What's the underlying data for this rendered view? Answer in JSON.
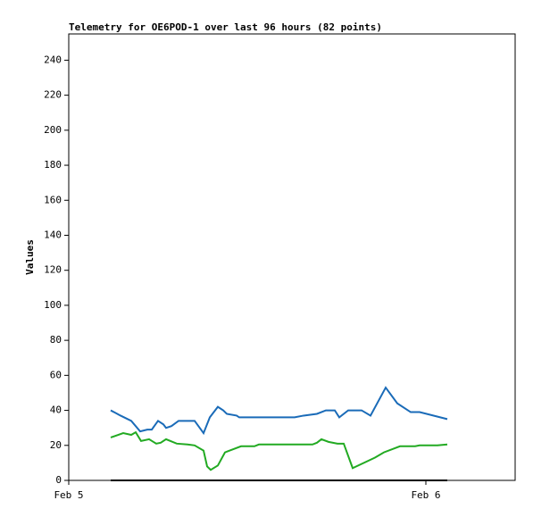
{
  "chart_data": {
    "type": "line",
    "title": "Telemetry for OE6POD-1 over last 96 hours (82 points)",
    "y_label": "Values",
    "xlim": [
      0,
      30
    ],
    "xticks": [
      {
        "value": 0,
        "label": "Feb 5"
      },
      {
        "value": 24,
        "label": "Feb 6"
      }
    ],
    "ylim": [
      0,
      255
    ],
    "yticks": [
      0,
      20,
      40,
      60,
      80,
      100,
      120,
      140,
      160,
      180,
      200,
      220,
      240
    ],
    "series": [
      {
        "color": "#1a6bb8",
        "x": [
          2.82,
          3.48,
          4.2,
          4.8,
          5.28,
          5.58,
          6.0,
          6.36,
          6.54,
          6.9,
          7.38,
          8.46,
          9.06,
          9.48,
          10.02,
          10.38,
          10.62,
          11.28,
          11.46,
          15.18,
          15.78,
          16.68,
          17.28,
          17.88,
          18.18,
          18.78,
          19.68,
          20.28,
          21.3,
          22.08,
          22.98,
          23.58,
          25.44
        ],
        "values": [
          40,
          37,
          34,
          28,
          29,
          29,
          34,
          32,
          30,
          31,
          34,
          34,
          27,
          36,
          42,
          40,
          38,
          37,
          36,
          36,
          37,
          38,
          40,
          40,
          36,
          40,
          40,
          37,
          53,
          44,
          39,
          39,
          35
        ]
      },
      {
        "color": "#22aa22",
        "x": [
          2.82,
          3.66,
          4.2,
          4.5,
          4.86,
          5.4,
          5.88,
          6.18,
          6.54,
          7.26,
          7.98,
          8.46,
          9.06,
          9.3,
          9.54,
          10.02,
          10.5,
          11.58,
          12.48,
          12.78,
          16.38,
          16.68,
          16.98,
          17.46,
          18.06,
          18.48,
          19.08,
          20.58,
          21.18,
          22.26,
          23.28,
          23.58,
          24.78,
          25.44
        ],
        "values": [
          24.5,
          27,
          26,
          27.5,
          22.5,
          23.5,
          21,
          21.5,
          23.5,
          21,
          20.5,
          20,
          17,
          8,
          6,
          8.5,
          16,
          19.5,
          19.5,
          20.5,
          20.5,
          21.5,
          23.5,
          22,
          21,
          21,
          7,
          13,
          16,
          19.5,
          19.5,
          20,
          20,
          20.5
        ]
      },
      {
        "color": "#000000",
        "x": [
          2.82,
          25.44
        ],
        "values": [
          0,
          0
        ]
      }
    ]
  }
}
